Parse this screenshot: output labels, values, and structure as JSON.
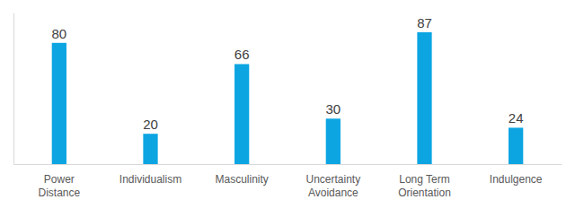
{
  "chart_data": {
    "type": "bar",
    "categories": [
      "Power Distance",
      "Individualism",
      "Masculinity",
      "Uncertainty Avoidance",
      "Long Term Orientation",
      "Indulgence"
    ],
    "values": [
      80,
      20,
      66,
      30,
      87,
      24
    ],
    "color": "#0ca5e2",
    "ylim": [
      0,
      100
    ],
    "data_labels": true,
    "tick_labels": "x"
  }
}
